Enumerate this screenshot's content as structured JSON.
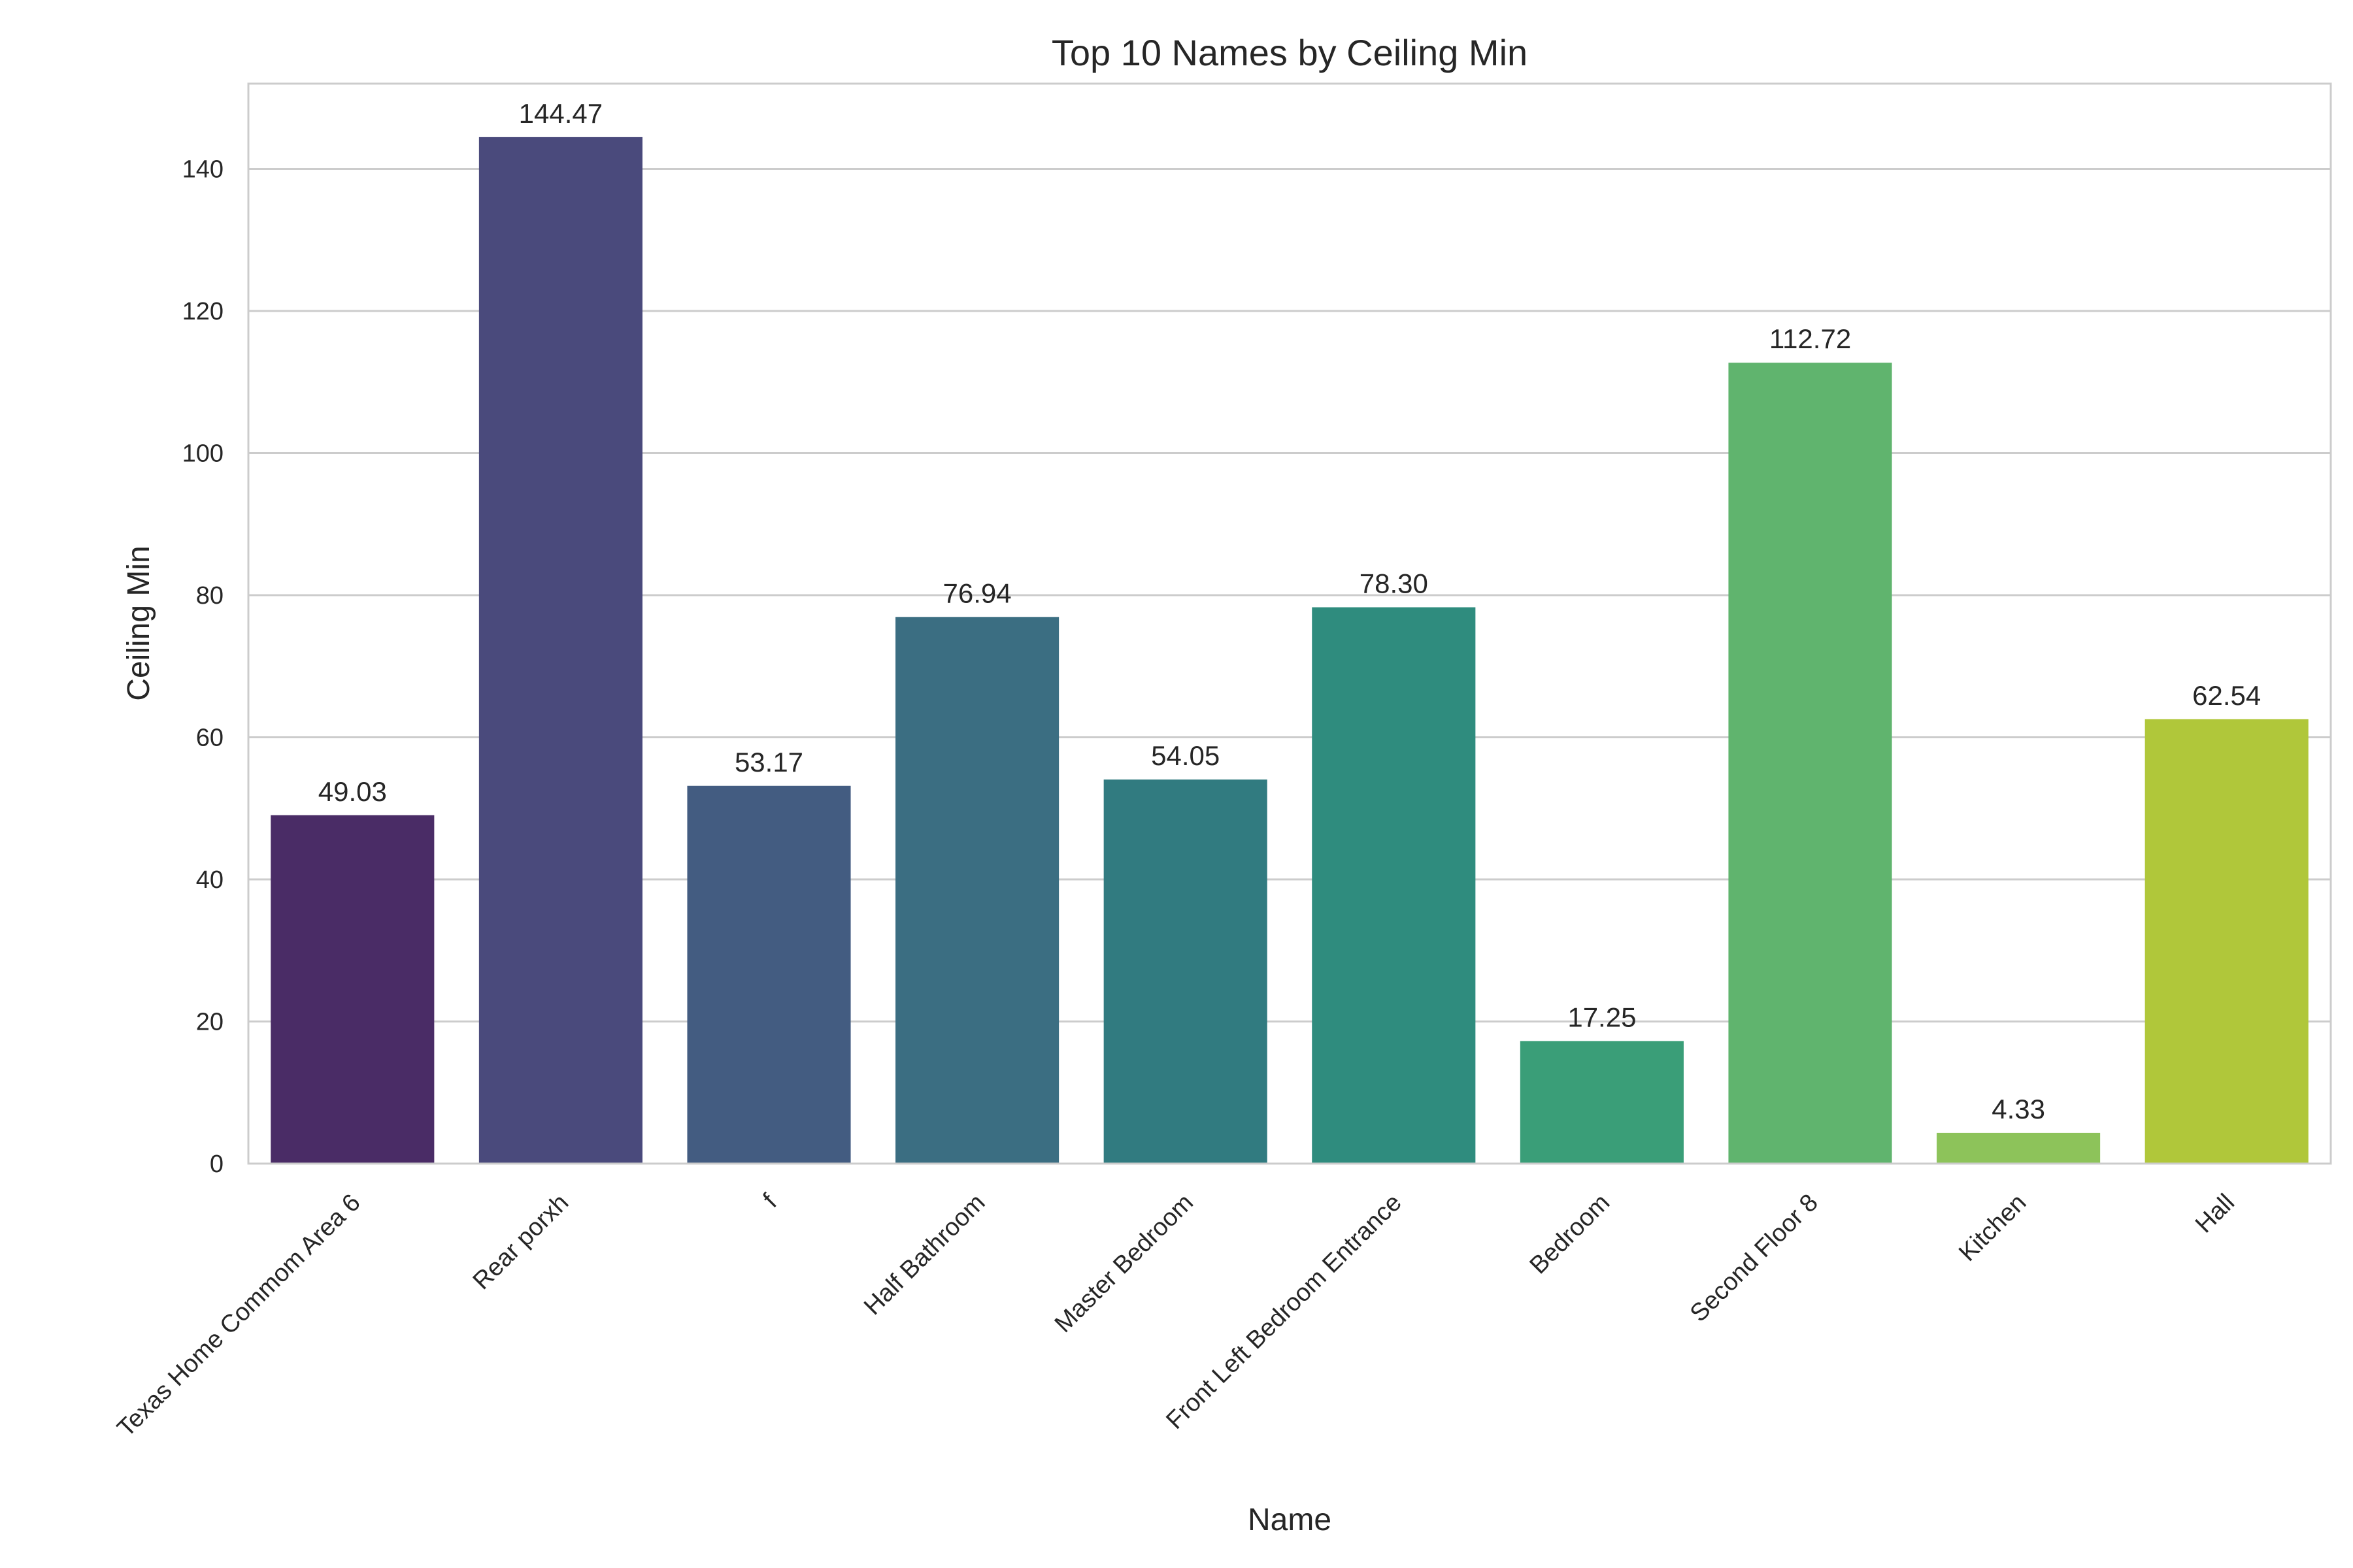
{
  "chart_data": {
    "type": "bar",
    "title": "Top 10 Names by Ceiling Min",
    "xlabel": "Name",
    "ylabel": "Ceiling Min",
    "categories": [
      "Texas Home Commom Area 6",
      "Rear porxh",
      "f",
      "Half Bathroom",
      "Master Bedroom",
      "Front Left Bedroom Entrance",
      "Bedroom",
      "Second Floor 8",
      "Kitchen",
      "Hall"
    ],
    "values": [
      49.03,
      144.47,
      53.17,
      76.94,
      54.05,
      78.3,
      17.25,
      112.72,
      4.33,
      62.54
    ],
    "data_labels": [
      "49.03",
      "144.47",
      "53.17",
      "76.94",
      "54.05",
      "78.30",
      "17.25",
      "112.72",
      "4.33",
      "62.54"
    ],
    "colors": [
      "#4a2c66",
      "#4a4a7c",
      "#435c81",
      "#3b6e82",
      "#317b80",
      "#2f8c7e",
      "#3a9e78",
      "#60b46e",
      "#8dc35a",
      "#b0c73a"
    ],
    "ylim": [
      0,
      152
    ],
    "yticks": [
      0,
      20,
      40,
      60,
      80,
      100,
      120,
      140
    ],
    "grid": true,
    "legend": "none"
  }
}
